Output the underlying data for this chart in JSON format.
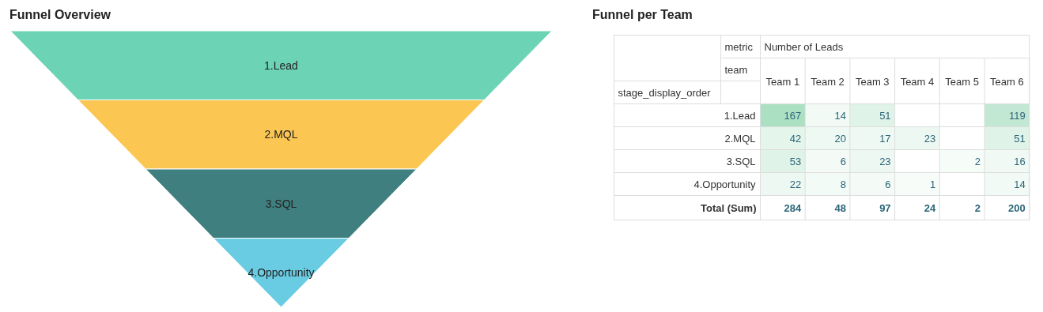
{
  "chart_data": [
    {
      "type": "other",
      "title": "Funnel Overview",
      "categories": [
        "1.Lead",
        "2.MQL",
        "3.SQL",
        "4.Opportunity"
      ],
      "colors": [
        "#6dd3b5",
        "#fcc653",
        "#3f7f7f",
        "#69cce2"
      ]
    },
    {
      "type": "heatmap",
      "title": "Funnel per Team",
      "xlabel": "team",
      "ylabel": "stage_display_order",
      "annotations": [
        "metric",
        "Number of Leads",
        "Total (Sum)"
      ],
      "categories": [
        "Team 1",
        "Team 2",
        "Team 3",
        "Team 4",
        "Team 5",
        "Team 6"
      ],
      "y_categories": [
        "1.Lead",
        "2.MQL",
        "3.SQL",
        "4.Opportunity"
      ],
      "cells": [
        [
          167,
          14,
          51,
          null,
          null,
          119
        ],
        [
          42,
          20,
          17,
          23,
          null,
          51
        ],
        [
          53,
          6,
          23,
          null,
          2,
          16
        ],
        [
          22,
          8,
          6,
          1,
          null,
          14
        ]
      ],
      "data_labels": true,
      "totals": [
        "284",
        "48",
        "97",
        "24",
        "2",
        "200"
      ]
    }
  ]
}
